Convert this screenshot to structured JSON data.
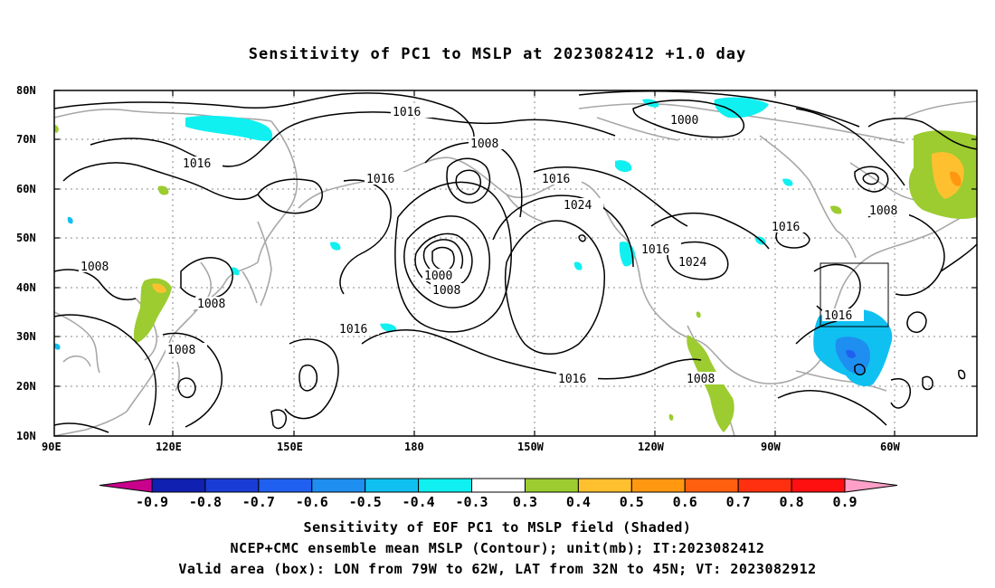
{
  "title": "Sensitivity of PC1 to MSLP at 2023082412 +1.0 day",
  "lat_labels": [
    "80N",
    "70N",
    "60N",
    "50N",
    "40N",
    "30N",
    "20N",
    "10N"
  ],
  "lon_labels": [
    "90E",
    "120E",
    "150E",
    "180",
    "150W",
    "120W",
    "90W",
    "60W"
  ],
  "contour_labels": {
    "l1016_a": "1016",
    "l1016_b": "1016",
    "l1016_c": "1016",
    "l1016_d": "1016",
    "l1016_e": "1016",
    "l1016_f": "1016",
    "l1016_g": "1016",
    "l1016_h": "1016",
    "l1016_i": "1016",
    "l1000_a": "1000",
    "l1000_b": "1000",
    "l1008_a": "1008",
    "l1008_b": "1008",
    "l1008_c": "1008",
    "l1008_d": "1008",
    "l1008_e": "1008",
    "l1008_f": "1008",
    "l1008_g": "1008",
    "l1024_a": "1024",
    "l1024_b": "1024"
  },
  "colorbar": {
    "colors": [
      "#c8008c",
      "#1020b0",
      "#1a3cd6",
      "#2060f0",
      "#1e8ef0",
      "#10c0f0",
      "#10f0f0",
      "#ffffff",
      "#9ccc30",
      "#ffc030",
      "#ff9810",
      "#ff6010",
      "#ff3010",
      "#ff1010",
      "#ffa0c8"
    ],
    "labels": [
      "-0.9",
      "-0.8",
      "-0.7",
      "-0.6",
      "-0.5",
      "-0.4",
      "-0.3",
      "0.3",
      "0.4",
      "0.5",
      "0.6",
      "0.7",
      "0.8",
      "0.9"
    ]
  },
  "caption": {
    "line1": "Sensitivity of EOF PC1 to MSLP field (Shaded)",
    "line2": "NCEP+CMC ensemble mean MSLP (Contour); unit(mb); IT:2023082412",
    "line3": "Valid area (box): LON from 79W to 62W, LAT from 32N to 45N; VT: 2023082912"
  }
}
